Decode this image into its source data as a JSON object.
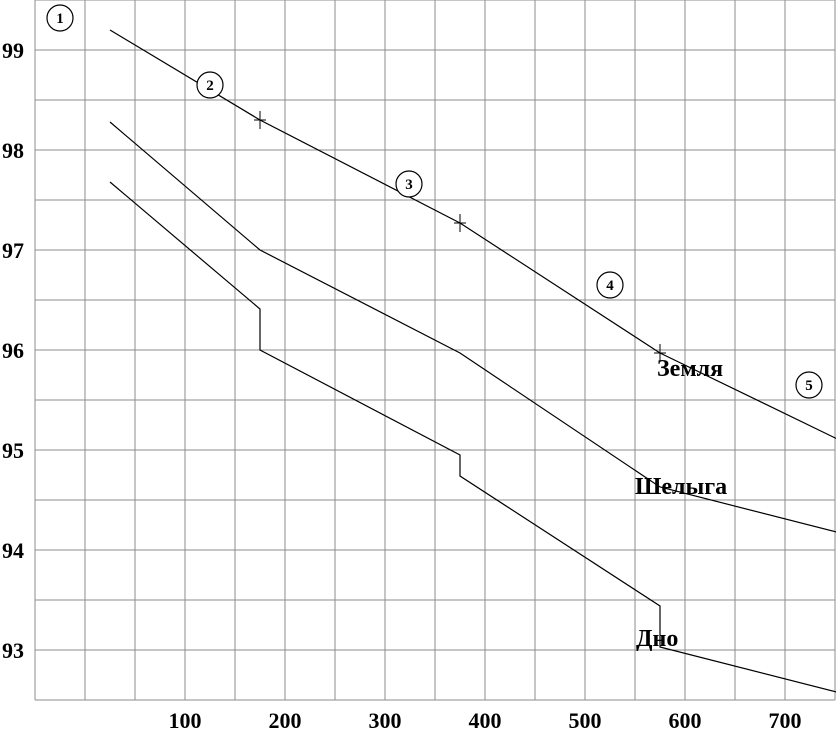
{
  "chart_data": {
    "type": "line",
    "title": "",
    "xlabel": "",
    "ylabel": "",
    "xlim": [
      -50,
      800
    ],
    "ylim": [
      92.5,
      99.5
    ],
    "grid": true,
    "x_ticks": [
      100,
      200,
      300,
      400,
      500,
      600,
      700
    ],
    "x_tick_labels": [
      "100",
      "200",
      "300",
      "400",
      "500",
      "600",
      "700"
    ],
    "y_ticks": [
      93,
      94,
      95,
      96,
      97,
      98,
      99
    ],
    "y_tick_labels": [
      "93",
      "94",
      "95",
      "96",
      "97",
      "98",
      "99"
    ],
    "series": [
      {
        "name": "Земля",
        "x": [
          25,
          175,
          375,
          575,
          775
        ],
        "y": [
          99.2,
          98.3,
          97.27,
          95.97,
          95.0
        ]
      },
      {
        "name": "Шелыга",
        "x": [
          25,
          175,
          375,
          575,
          775
        ],
        "y": [
          98.28,
          97.0,
          95.97,
          94.63,
          94.12
        ]
      },
      {
        "name": "Дно",
        "x": [
          25,
          175,
          175,
          375,
          375,
          575,
          575,
          775
        ],
        "y": [
          97.68,
          96.41,
          96.0,
          94.95,
          94.74,
          93.44,
          93.03,
          92.52
        ]
      }
    ],
    "points": [
      {
        "label": "1",
        "x": 25,
        "y": 99.2
      },
      {
        "label": "2",
        "x": 175,
        "y": 98.3
      },
      {
        "label": "3",
        "x": 375,
        "y": 97.27
      },
      {
        "label": "4",
        "x": 575,
        "y": 95.97
      },
      {
        "label": "5",
        "x": 775,
        "y": 95.0
      }
    ]
  }
}
